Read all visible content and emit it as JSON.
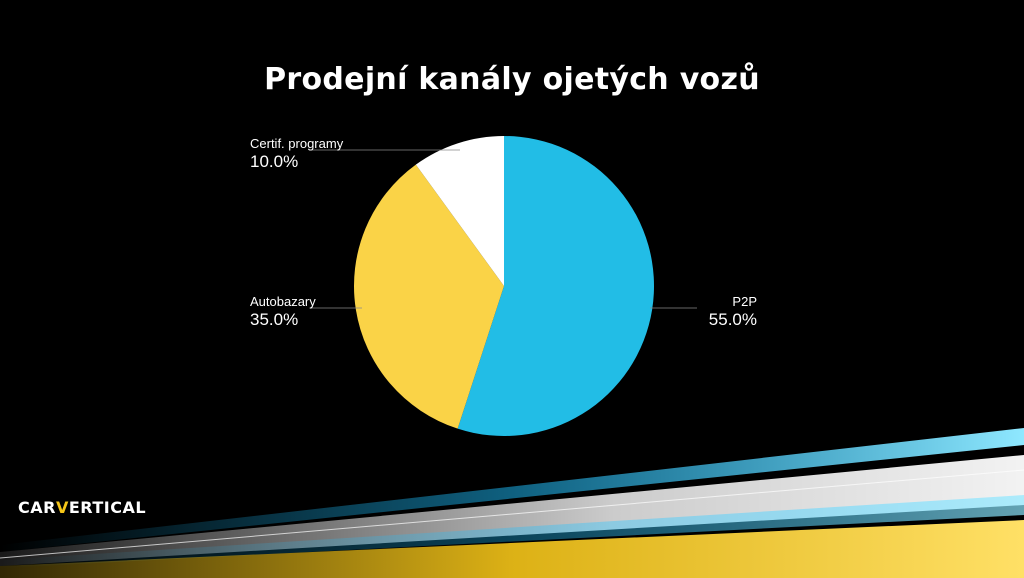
{
  "colors": {
    "background": "#000000",
    "slice_p2p": "#22bde6",
    "slice_autobazary": "#fad347",
    "slice_certif": "#ffffff",
    "streak_blue": "#1ec0ff",
    "streak_yellow": "#f5c518"
  },
  "brand": {
    "logo_prefix": "CAR",
    "logo_accent": "V",
    "logo_suffix": "ERTICAL"
  },
  "chart_data": {
    "type": "pie",
    "title": "Prodejní kanály ojetých vozů",
    "categories": [
      "P2P",
      "Autobazary",
      "Certif. programy"
    ],
    "values": [
      55.0,
      35.0,
      10.0
    ],
    "value_labels": [
      "55.0%",
      "35.0%",
      "10.0%"
    ],
    "start_angle_deg": 0,
    "direction": "clockwise",
    "legend": "none"
  }
}
